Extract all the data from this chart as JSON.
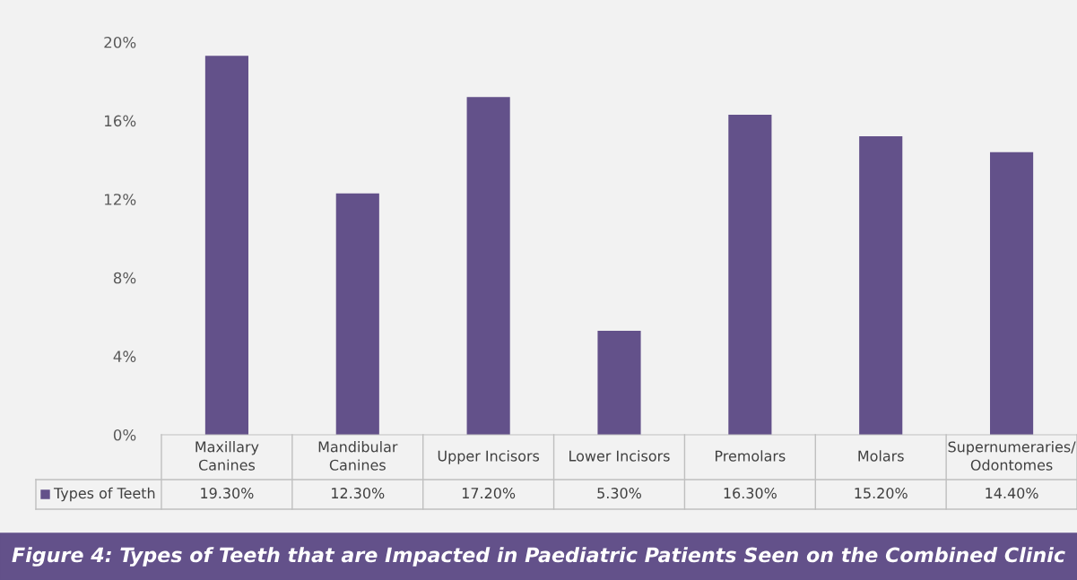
{
  "chart_data": {
    "type": "bar",
    "title": "Figure 4: Types of Teeth that are Impacted in Paediatric Patients Seen on the Combined Clinic",
    "categories": [
      "Maxillary Canines",
      "Mandibular Canines",
      "Upper Incisors",
      "Lower Incisors",
      "Premolars",
      "Molars",
      "Supernumeraries/ Odontomes"
    ],
    "series": [
      {
        "name": "Types of Teeth",
        "color": "#63518a",
        "values": [
          19.3,
          12.3,
          17.2,
          5.3,
          16.3,
          15.2,
          14.4
        ],
        "value_labels": [
          "19.30%",
          "12.30%",
          "17.20%",
          "5.30%",
          "16.30%",
          "15.20%",
          "14.40%"
        ]
      }
    ],
    "ylim": [
      0,
      20
    ],
    "yticks": [
      {
        "value": 0,
        "label": "0%"
      },
      {
        "value": 4,
        "label": "4%"
      },
      {
        "value": 8,
        "label": "8%"
      },
      {
        "value": 12,
        "label": "12%"
      },
      {
        "value": 16,
        "label": "16%"
      },
      {
        "value": 20,
        "label": "20%"
      }
    ],
    "grid": false,
    "legend": "bottom left",
    "data_labels": true
  }
}
